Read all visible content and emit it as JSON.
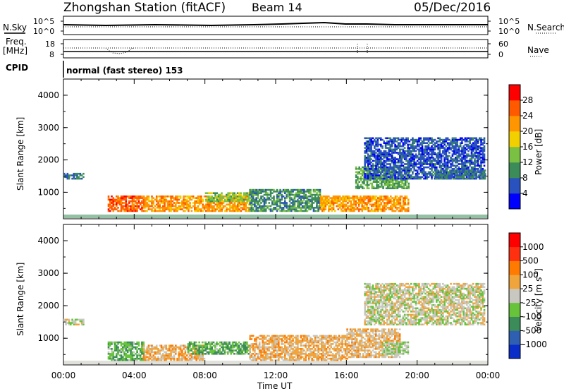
{
  "header": {
    "title": "Zhongshan Station (fitACF)",
    "beam": "Beam 14",
    "date": "05/Dec/2016"
  },
  "noise_panel": {
    "left_label": "N.Sky",
    "right_label": "N.Search",
    "left_ticks": [
      "10^5",
      "10^0"
    ],
    "right_ticks": [
      "10^5",
      "10^0"
    ]
  },
  "freq_panel": {
    "left_label_line1": "Freq.",
    "left_label_line2": "[MHz]",
    "left_ticks": [
      "18",
      "8"
    ],
    "right_label": "Nave",
    "right_ticks": [
      "60",
      "0"
    ]
  },
  "cpid": {
    "label": "CPID",
    "mode": "normal (fast stereo) 153"
  },
  "x_axis": {
    "label": "Time UT",
    "ticks": [
      "00:00",
      "04:00",
      "08:00",
      "12:00",
      "16:00",
      "20:00",
      "00:00"
    ]
  },
  "y_axis": {
    "label": "Slant Range [km]",
    "ticks": [
      "1000",
      "2000",
      "3000",
      "4000"
    ]
  },
  "power_colorbar": {
    "label": "Power [dB]",
    "ticks": [
      "4",
      "8",
      "12",
      "16",
      "20",
      "24",
      "28"
    ],
    "colors": [
      "#0000ff",
      "#2a52be",
      "#3c8c5a",
      "#7ac043",
      "#f2d000",
      "#ff9500",
      "#ff5a00",
      "#ff0000"
    ]
  },
  "velocity_colorbar": {
    "label_main": "Velocity [m s",
    "label_exp": "-1",
    "label_end": "]",
    "ticks": [
      "1000",
      "500",
      "100",
      "25",
      "-25",
      "-100",
      "-500",
      "-1000"
    ],
    "colors": [
      "#0a2cc8",
      "#2e5fb0",
      "#3c8c5a",
      "#66c33a",
      "#c8c8c0",
      "#f0a43c",
      "#ff7a00",
      "#ff3010",
      "#ff0000"
    ]
  },
  "chart_data": [
    {
      "type": "heatmap",
      "title": "Power",
      "xlabel": "Time UT",
      "ylabel": "Slant Range [km]",
      "xlim": [
        0,
        24
      ],
      "ylim": [
        180,
        4500
      ],
      "colorbar": {
        "label": "Power [dB]",
        "min": 0,
        "max": 32
      },
      "regions": [
        {
          "t": [
            0.0,
            1.1
          ],
          "range": [
            1400,
            1600
          ],
          "value": 8
        },
        {
          "t": [
            2.5,
            4.5
          ],
          "range": [
            400,
            900
          ],
          "value": 26
        },
        {
          "t": [
            4.5,
            10.5
          ],
          "range": [
            400,
            900
          ],
          "value": 22
        },
        {
          "t": [
            8.0,
            10.5
          ],
          "range": [
            700,
            1000
          ],
          "value": 14
        },
        {
          "t": [
            10.5,
            14.5
          ],
          "range": [
            400,
            1100
          ],
          "value": 10
        },
        {
          "t": [
            14.5,
            19.5
          ],
          "range": [
            400,
            900
          ],
          "value": 22
        },
        {
          "t": [
            16.5,
            19.5
          ],
          "range": [
            1100,
            1800
          ],
          "value": 12
        },
        {
          "t": [
            17.0,
            23.8
          ],
          "range": [
            1400,
            2700
          ],
          "value": 6
        },
        {
          "t": [
            21.0,
            23.8
          ],
          "range": [
            1400,
            1700
          ],
          "value": 8
        }
      ]
    },
    {
      "type": "heatmap",
      "title": "Velocity",
      "xlabel": "Time UT",
      "ylabel": "Slant Range [km]",
      "xlim": [
        0,
        24
      ],
      "ylim": [
        180,
        4500
      ],
      "colorbar": {
        "label": "Velocity [m s-1]",
        "min": -1000,
        "max": 1000
      },
      "regions": [
        {
          "t": [
            0.0,
            1.1
          ],
          "range": [
            1400,
            1600
          ],
          "value": 0
        },
        {
          "t": [
            2.5,
            4.5
          ],
          "range": [
            300,
            900
          ],
          "value": -300
        },
        {
          "t": [
            4.5,
            8.0
          ],
          "range": [
            300,
            800
          ],
          "value": 200
        },
        {
          "t": [
            7.0,
            10.5
          ],
          "range": [
            500,
            900
          ],
          "value": -300
        },
        {
          "t": [
            10.5,
            16.0
          ],
          "range": [
            300,
            1100
          ],
          "value": 200
        },
        {
          "t": [
            16.0,
            19.0
          ],
          "range": [
            400,
            1300
          ],
          "value": 150
        },
        {
          "t": [
            18.0,
            19.5
          ],
          "range": [
            500,
            900
          ],
          "value": -100
        },
        {
          "t": [
            17.0,
            23.8
          ],
          "range": [
            1400,
            2700
          ],
          "value": 0
        }
      ]
    }
  ]
}
